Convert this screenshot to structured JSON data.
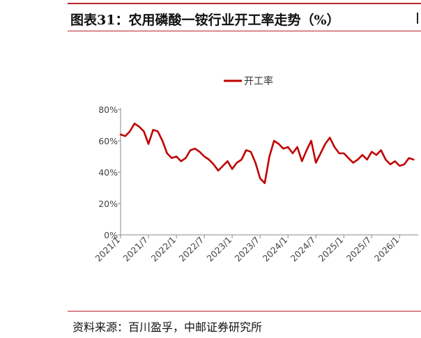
{
  "header": {
    "title": "图表31：农用磷酸一铵行业开工率走势（%）"
  },
  "footer": {
    "source": "资料来源：百川盈孚，中邮证券研究所"
  },
  "colors": {
    "accent": "#b8242b",
    "series": "#c00000",
    "axis": "#888888"
  },
  "chart_data": {
    "type": "line",
    "title": "",
    "xlabel": "",
    "ylabel": "",
    "ylim": [
      0,
      80
    ],
    "y_ticks": [
      "0%",
      "20%",
      "40%",
      "60%",
      "80%"
    ],
    "x_ticks": [
      "2021/1",
      "2021/7",
      "2022/1",
      "2022/7",
      "2023/1",
      "2023/7",
      "2024/1",
      "2024/7",
      "2025/1",
      "2025/7",
      "2026/1"
    ],
    "xlim": [
      "2021-01",
      "2026-05"
    ],
    "legend": {
      "position": "top",
      "entries": [
        "开工率"
      ]
    },
    "grid": false,
    "series": [
      {
        "name": "开工率",
        "x": [
          "2021-01",
          "2021-02",
          "2021-03",
          "2021-04",
          "2021-05",
          "2021-06",
          "2021-07",
          "2021-08",
          "2021-09",
          "2021-10",
          "2021-11",
          "2021-12",
          "2022-01",
          "2022-02",
          "2022-03",
          "2022-04",
          "2022-05",
          "2022-06",
          "2022-07",
          "2022-08",
          "2022-09",
          "2022-10",
          "2022-11",
          "2022-12",
          "2023-01",
          "2023-02",
          "2023-03",
          "2023-04",
          "2023-05",
          "2023-06",
          "2023-07",
          "2023-08",
          "2023-09",
          "2023-10",
          "2023-11",
          "2023-12",
          "2024-01",
          "2024-02",
          "2024-03",
          "2024-04",
          "2024-05",
          "2024-06",
          "2024-07",
          "2024-08",
          "2024-09",
          "2024-10",
          "2024-11",
          "2024-12",
          "2025-01",
          "2025-02",
          "2025-03",
          "2025-04",
          "2025-05",
          "2025-06",
          "2025-07",
          "2025-08",
          "2025-09",
          "2025-10",
          "2025-11",
          "2025-12",
          "2026-01",
          "2026-02",
          "2026-03",
          "2026-04"
        ],
        "values": [
          64,
          63,
          66,
          71,
          69,
          66,
          58,
          67,
          66,
          60,
          52,
          49,
          50,
          47,
          49,
          54,
          55,
          53,
          50,
          48,
          45,
          41,
          44,
          47,
          42,
          46,
          48,
          54,
          53,
          46,
          36,
          33,
          50,
          60,
          58,
          55,
          56,
          52,
          56,
          47,
          54,
          60,
          46,
          52,
          58,
          62,
          56,
          52,
          52,
          49,
          46,
          48,
          51,
          48,
          53,
          51,
          54,
          48,
          45,
          47,
          44,
          45,
          49,
          48
        ]
      }
    ]
  }
}
